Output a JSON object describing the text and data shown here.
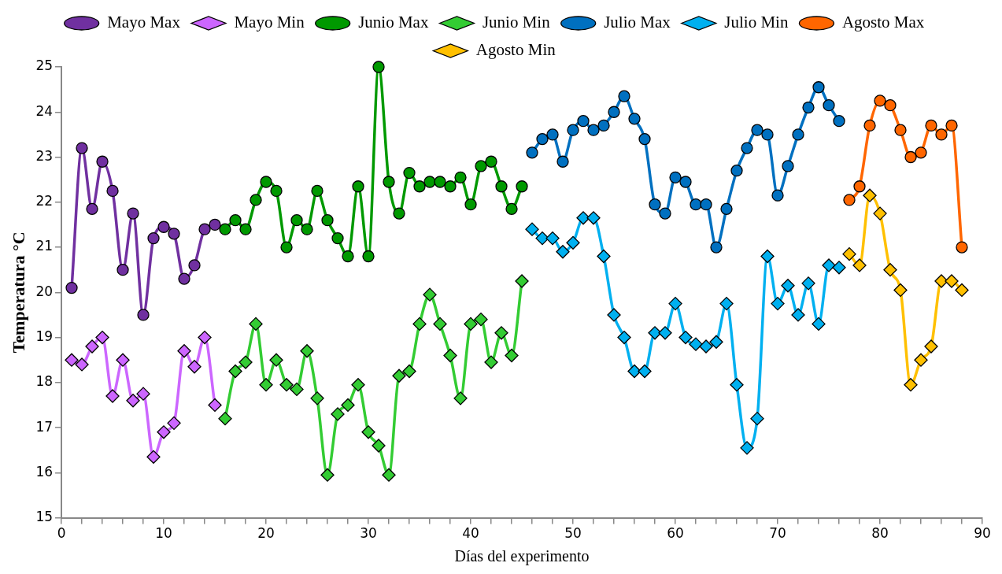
{
  "chart_data": {
    "type": "line",
    "xlabel": "Días del experimento",
    "ylabel": "Temperatura °C",
    "xlim": [
      0,
      90
    ],
    "ylim": [
      15,
      25
    ],
    "xticks": [
      0,
      {
        "value": 2,
        "label": null
      },
      {
        "value": 4,
        "label": null
      },
      {
        "value": 6,
        "label": null
      },
      {
        "value": 8,
        "label": null
      },
      10,
      {
        "value": 12,
        "label": null
      },
      {
        "value": 14,
        "label": null
      },
      {
        "value": 16,
        "label": null
      },
      {
        "value": 18,
        "label": null
      },
      20,
      {
        "value": 22,
        "label": null
      },
      {
        "value": 24,
        "label": null
      },
      {
        "value": 26,
        "label": null
      },
      {
        "value": 28,
        "label": null
      },
      30,
      {
        "value": 32,
        "label": null
      },
      {
        "value": 34,
        "label": null
      },
      {
        "value": 36,
        "label": null
      },
      {
        "value": 38,
        "label": null
      },
      40,
      {
        "value": 42,
        "label": null
      },
      {
        "value": 44,
        "label": null
      },
      {
        "value": 46,
        "label": null
      },
      {
        "value": 48,
        "label": null
      },
      50,
      {
        "value": 52,
        "label": null
      },
      {
        "value": 54,
        "label": null
      },
      {
        "value": 56,
        "label": null
      },
      {
        "value": 58,
        "label": null
      },
      60,
      {
        "value": 62,
        "label": null
      },
      {
        "value": 64,
        "label": null
      },
      {
        "value": 66,
        "label": null
      },
      {
        "value": 68,
        "label": null
      },
      70,
      {
        "value": 72,
        "label": null
      },
      {
        "value": 74,
        "label": null
      },
      {
        "value": 76,
        "label": null
      },
      {
        "value": 78,
        "label": null
      },
      80,
      {
        "value": 82,
        "label": null
      },
      {
        "value": 84,
        "label": null
      },
      {
        "value": 86,
        "label": null
      },
      {
        "value": 88,
        "label": null
      },
      90
    ],
    "yticks": [
      15,
      16,
      17,
      18,
      19,
      20,
      21,
      22,
      23,
      24,
      25
    ],
    "grid": false,
    "legend": "top",
    "line_style": "solid",
    "series": [
      {
        "name": "Mayo Max",
        "color": "#7030a0",
        "marker": "circle",
        "x": [
          1,
          2,
          3,
          4,
          5,
          6,
          7,
          8,
          9,
          10,
          11,
          12,
          13,
          14,
          15
        ],
        "values": [
          20.1,
          23.2,
          21.85,
          22.9,
          22.25,
          20.5,
          21.75,
          19.5,
          21.2,
          21.45,
          21.3,
          20.3,
          20.6,
          21.4,
          21.5
        ]
      },
      {
        "name": "Mayo Min",
        "color": "#cc66ff",
        "marker": "diamond",
        "x": [
          1,
          2,
          3,
          4,
          5,
          6,
          7,
          8,
          9,
          10,
          11,
          12,
          13,
          14,
          15
        ],
        "values": [
          18.5,
          18.4,
          18.8,
          19.0,
          17.7,
          18.5,
          17.6,
          17.75,
          16.35,
          16.9,
          17.1,
          18.7,
          18.35,
          19.0,
          17.5
        ]
      },
      {
        "name": "Junio Max",
        "color": "#009900",
        "marker": "circle",
        "x": [
          16,
          17,
          18,
          19,
          20,
          21,
          22,
          23,
          24,
          25,
          26,
          27,
          28,
          29,
          30,
          31,
          32,
          33,
          34,
          35,
          36,
          37,
          38,
          39,
          40,
          41,
          42,
          43,
          44,
          45
        ],
        "values": [
          21.4,
          21.6,
          21.4,
          22.05,
          22.45,
          22.25,
          21.0,
          21.6,
          21.4,
          22.25,
          21.6,
          21.2,
          20.8,
          22.35,
          20.8,
          25.0,
          22.45,
          21.75,
          22.65,
          22.35,
          22.45,
          22.45,
          22.35,
          22.55,
          21.95,
          22.8,
          22.9,
          22.35,
          21.85,
          22.35
        ]
      },
      {
        "name": "Junio Min",
        "color": "#33cc33",
        "marker": "diamond",
        "x": [
          16,
          17,
          18,
          19,
          20,
          21,
          22,
          23,
          24,
          25,
          26,
          27,
          28,
          29,
          30,
          31,
          32,
          33,
          34,
          35,
          36,
          37,
          38,
          39,
          40,
          41,
          42,
          43,
          44,
          45
        ],
        "values": [
          17.2,
          18.25,
          18.45,
          19.3,
          17.95,
          18.5,
          17.95,
          17.85,
          18.7,
          17.65,
          15.95,
          17.3,
          17.5,
          17.95,
          16.9,
          16.6,
          15.95,
          18.15,
          18.25,
          19.3,
          19.95,
          19.3,
          18.6,
          17.65,
          19.3,
          19.4,
          18.45,
          19.1,
          18.6,
          20.25
        ]
      },
      {
        "name": "Julio Max",
        "color": "#0070c0",
        "marker": "circle",
        "x": [
          46,
          47,
          48,
          49,
          50,
          51,
          52,
          53,
          54,
          55,
          56,
          57,
          58,
          59,
          60,
          61,
          62,
          63,
          64,
          65,
          66,
          67,
          68,
          69,
          70,
          71,
          72,
          73,
          74,
          75,
          76
        ],
        "values": [
          23.1,
          23.4,
          23.5,
          22.9,
          23.6,
          23.8,
          23.6,
          23.7,
          24.0,
          24.35,
          23.85,
          23.4,
          21.95,
          21.75,
          22.55,
          22.45,
          21.95,
          21.95,
          21.0,
          21.85,
          22.7,
          23.2,
          23.6,
          23.5,
          22.15,
          22.8,
          23.5,
          24.1,
          24.55,
          24.15,
          23.8
        ]
      },
      {
        "name": "Julio Min",
        "color": "#00b0f0",
        "marker": "diamond",
        "x": [
          46,
          47,
          48,
          49,
          50,
          51,
          52,
          53,
          54,
          55,
          56,
          57,
          58,
          59,
          60,
          61,
          62,
          63,
          64,
          65,
          66,
          67,
          68,
          69,
          70,
          71,
          72,
          73,
          74,
          75,
          76
        ],
        "values": [
          21.4,
          21.2,
          21.2,
          20.9,
          21.1,
          21.65,
          21.65,
          20.8,
          19.5,
          19.0,
          18.25,
          18.25,
          19.1,
          19.1,
          19.75,
          19.0,
          18.85,
          18.8,
          18.9,
          19.75,
          17.95,
          16.55,
          17.2,
          20.8,
          19.75,
          20.15,
          19.5,
          20.2,
          19.3,
          20.6,
          20.55
        ]
      },
      {
        "name": "Agosto Max",
        "color": "#ff6600",
        "marker": "circle",
        "x": [
          77,
          78,
          79,
          80,
          81,
          82,
          83,
          84,
          85,
          86,
          87,
          88
        ],
        "values": [
          22.05,
          22.35,
          23.7,
          24.25,
          24.15,
          23.6,
          23.0,
          23.1,
          23.7,
          23.5,
          23.7,
          21.0
        ]
      },
      {
        "name": "Agosto Min",
        "color": "#ffc000",
        "marker": "diamond",
        "x": [
          77,
          78,
          79,
          80,
          81,
          82,
          83,
          84,
          85,
          86,
          87,
          88
        ],
        "values": [
          20.85,
          20.6,
          22.15,
          21.75,
          20.5,
          20.05,
          17.95,
          18.5,
          18.8,
          20.25,
          20.25,
          20.05
        ]
      }
    ]
  }
}
